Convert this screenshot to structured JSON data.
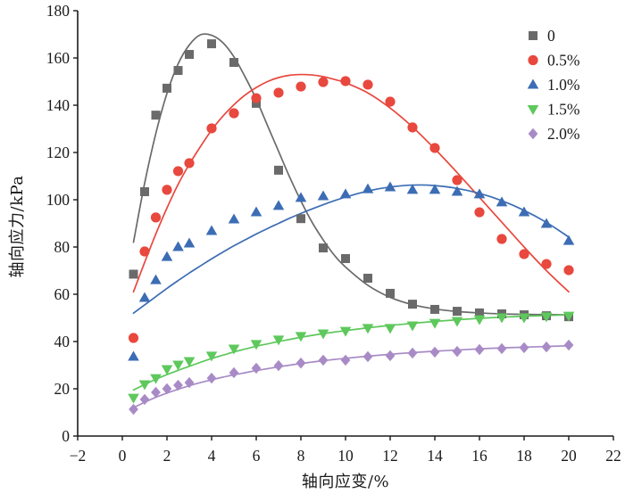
{
  "chart_data": {
    "type": "scatter",
    "xlabel": "轴向应变/%",
    "ylabel": "轴向应力/kPa",
    "xlim": [
      -2,
      22
    ],
    "ylim": [
      0,
      180
    ],
    "xticks": [
      "−2",
      "0",
      "2",
      "4",
      "6",
      "8",
      "10",
      "12",
      "14",
      "16",
      "18",
      "20",
      "22"
    ],
    "yticks": [
      "0",
      "20",
      "40",
      "60",
      "80",
      "100",
      "120",
      "140",
      "160",
      "180"
    ],
    "grid": false,
    "legend": "top-right",
    "x": [
      0.5,
      1,
      1.5,
      2,
      2.5,
      3,
      4,
      5,
      6,
      7,
      8,
      9,
      10,
      11,
      12,
      13,
      14,
      15,
      16,
      17,
      18,
      19,
      20
    ],
    "fit_x": [
      0.5,
      1,
      1.5,
      2,
      2.5,
      3,
      3.5,
      4,
      4.5,
      5,
      5.5,
      6,
      6.5,
      7,
      7.5,
      8,
      8.5,
      9,
      9.5,
      10,
      11,
      12,
      13,
      14,
      15,
      16,
      17,
      18,
      19,
      20
    ],
    "series": [
      {
        "name": "0",
        "marker": "square",
        "color": "#6a6a6a",
        "values": [
          68.5,
          103.4,
          135.8,
          147.2,
          154.7,
          161.5,
          166.0,
          158.1,
          140.8,
          112.5,
          92.0,
          79.6,
          75.1,
          66.8,
          60.4,
          55.8,
          53.6,
          52.8,
          52.1,
          51.7,
          51.3,
          50.9,
          50.5
        ],
        "fit": [
          82,
          107,
          128,
          145,
          157.5,
          165.5,
          169.8,
          169.6,
          166.5,
          160.5,
          152,
          142.5,
          131.5,
          120.5,
          109.5,
          99.5,
          90.5,
          83,
          76.5,
          71.5,
          63.8,
          58.7,
          55.6,
          53.8,
          52.7,
          52.1,
          51.7,
          51.5,
          51.4,
          51.3
        ]
      },
      {
        "name": "0.5%",
        "marker": "circle",
        "color": "#e8483e",
        "values": [
          41.5,
          78.1,
          92.5,
          104.2,
          112.1,
          115.5,
          130.2,
          136.6,
          143.0,
          145.3,
          147.9,
          149.8,
          150.2,
          148.7,
          141.5,
          130.6,
          121.9,
          108.3,
          94.7,
          83.4,
          77.0,
          72.8,
          70.2
        ],
        "fit": [
          61,
          73.5,
          85.5,
          96.5,
          106.5,
          115,
          122.5,
          129.5,
          135.3,
          140.2,
          144.3,
          147.5,
          150,
          151.7,
          152.7,
          153,
          152.8,
          152.1,
          150.9,
          149.5,
          145.2,
          138.8,
          130.8,
          121.5,
          111.5,
          101,
          90.5,
          80,
          70,
          61
        ]
      },
      {
        "name": "1.0%",
        "marker": "triangle-up",
        "color": "#3c6db4",
        "values": [
          33.6,
          58.5,
          66.0,
          75.8,
          80.0,
          81.5,
          86.8,
          91.7,
          94.7,
          97.4,
          100.8,
          101.5,
          102.3,
          104.5,
          105.3,
          104.2,
          104.2,
          103.4,
          102.3,
          98.9,
          94.7,
          89.8,
          82.6
        ],
        "fit": [
          52,
          55.5,
          59,
          62.5,
          65.8,
          69,
          72,
          75,
          77.8,
          80.5,
          83,
          85.5,
          87.8,
          90,
          92.2,
          94.2,
          96.1,
          97.9,
          99.6,
          101.1,
          103.7,
          105.4,
          106.2,
          106,
          104.8,
          102.7,
          99.6,
          95.5,
          90.4,
          84.2
        ]
      },
      {
        "name": "1.5%",
        "marker": "triangle-down",
        "color": "#5ec85c",
        "values": [
          16.2,
          21.9,
          24.5,
          28.3,
          30.2,
          31.7,
          34.0,
          37.0,
          38.9,
          40.8,
          42.3,
          43.4,
          44.5,
          45.7,
          45.7,
          46.8,
          47.9,
          48.7,
          49.4,
          50.2,
          50.2,
          50.6,
          50.9
        ],
        "fit": [
          19.5,
          21.8,
          24,
          26,
          27.8,
          29.5,
          31.2,
          32.8,
          34.2,
          35.6,
          36.8,
          38,
          39,
          40,
          40.9,
          41.8,
          42.6,
          43.3,
          44,
          44.6,
          45.8,
          46.8,
          47.7,
          48.5,
          49.2,
          49.8,
          50.3,
          50.7,
          51,
          51.3
        ]
      },
      {
        "name": "2.0%",
        "marker": "diamond",
        "color": "#a88bc6",
        "values": [
          11.3,
          15.5,
          18.5,
          20.0,
          21.5,
          22.6,
          24.5,
          26.8,
          28.7,
          29.8,
          30.9,
          32.1,
          32.1,
          33.6,
          34.0,
          35.1,
          35.5,
          35.8,
          36.6,
          37.0,
          37.4,
          37.7,
          38.5
        ],
        "fit": [
          12,
          14.3,
          16.4,
          18.2,
          19.8,
          21.3,
          22.6,
          23.8,
          24.9,
          25.9,
          26.8,
          27.7,
          28.5,
          29.3,
          30,
          30.7,
          31.3,
          31.9,
          32.4,
          32.9,
          33.8,
          34.6,
          35.3,
          35.9,
          36.4,
          36.9,
          37.3,
          37.6,
          37.9,
          38.2
        ]
      }
    ]
  }
}
